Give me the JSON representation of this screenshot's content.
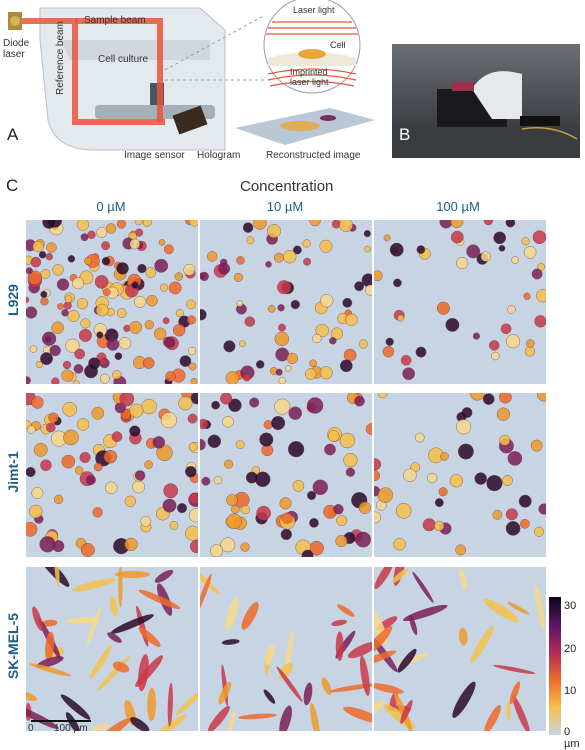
{
  "panel_a": {
    "letter": "A",
    "labels": {
      "diode_laser_line1": "Diode",
      "diode_laser_line2": "laser",
      "sample_beam": "Sample beam",
      "reference_beam": "Reference beam",
      "cell_culture": "Cell culture",
      "image_sensor": "Image sensor",
      "hologram": "Hologram",
      "reconstructed_image": "Reconstructed image"
    },
    "inset": {
      "laser_light": "Laser light",
      "cell": "Cell",
      "imprinted_line1": "Imprinted",
      "imprinted_line2": "laser light"
    },
    "colors": {
      "beam": "#e8553a",
      "device": "#dde3ea"
    }
  },
  "panel_b": {
    "letter": "B"
  },
  "panel_c": {
    "letter": "C",
    "title": "Concentration",
    "columns": [
      "0 µM",
      "10 µM",
      "100 µM"
    ],
    "rows": [
      "L929",
      "Jimt-1",
      "SK-MEL-5"
    ],
    "scale_bar": {
      "zero": "0",
      "label": "100 µm"
    },
    "colorbar": {
      "ticks": [
        "30",
        "20",
        "10",
        "0 µm"
      ],
      "colors": [
        "#0b0518",
        "#5a1466",
        "#b32a58",
        "#ee6a2a",
        "#f5c04a",
        "#c6d4e4"
      ]
    }
  }
}
